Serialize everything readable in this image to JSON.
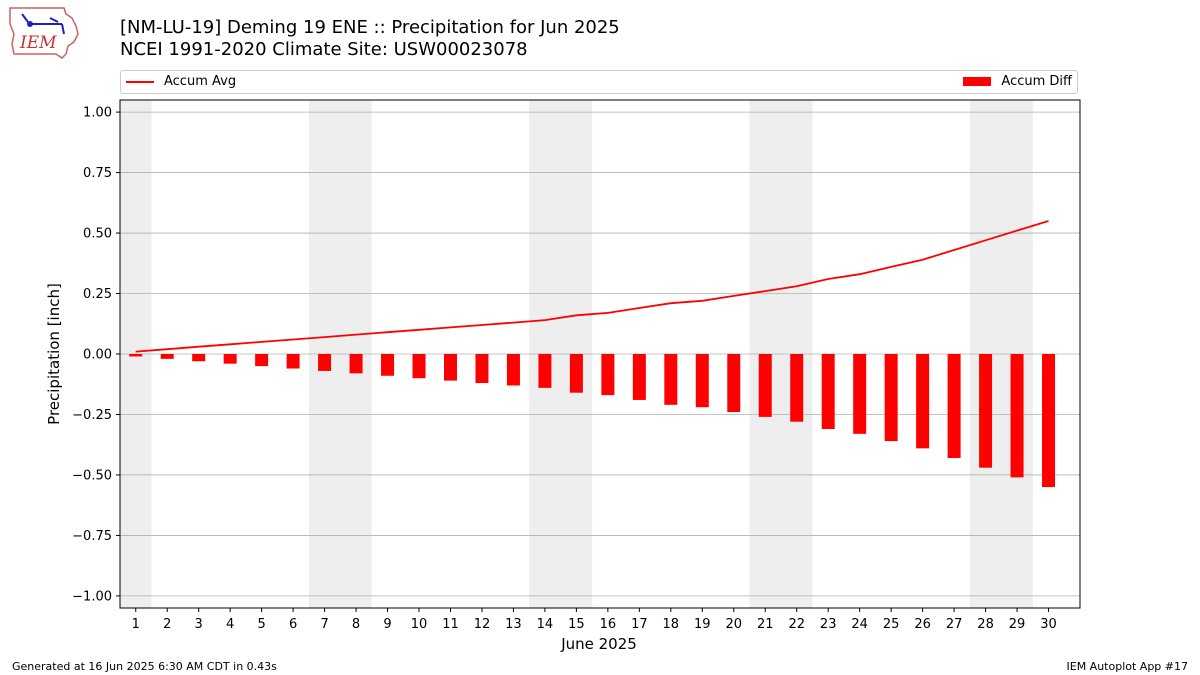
{
  "header": {
    "title_line1": "[NM-LU-19] Deming 19 ENE :: Precipitation for Jun 2025",
    "title_line2": "NCEI 1991-2020 Climate Site: USW00023078"
  },
  "logo": {
    "text": "IEM",
    "icon": "iowa-map-weather-station-logo"
  },
  "footer": {
    "generated": "Generated at 16 Jun 2025 6:30 AM CDT in 0.43s",
    "app": "IEM Autoplot App #17"
  },
  "colors": {
    "series": "#ff0000",
    "weekend_band": "#eeeeee",
    "grid": "#b0b0b0"
  },
  "chart_data": {
    "type": "bar",
    "xlabel": "June 2025",
    "ylabel": "Precipitation [inch]",
    "ylim": [
      -1.05,
      1.05
    ],
    "yticks": [
      -1.0,
      -0.75,
      -0.5,
      -0.25,
      0.0,
      0.25,
      0.5,
      0.75,
      1.0
    ],
    "ytick_labels": [
      "−1.00",
      "−0.75",
      "−0.50",
      "−0.25",
      "0.00",
      "0.25",
      "0.50",
      "0.75",
      "1.00"
    ],
    "categories": [
      "1",
      "2",
      "3",
      "4",
      "5",
      "6",
      "7",
      "8",
      "9",
      "10",
      "11",
      "12",
      "13",
      "14",
      "15",
      "16",
      "17",
      "18",
      "19",
      "20",
      "21",
      "22",
      "23",
      "24",
      "25",
      "26",
      "27",
      "28",
      "29",
      "30"
    ],
    "grid": "horizontal",
    "legend_position": "top",
    "weekend_bands": [
      [
        0.5,
        1.5
      ],
      [
        6.5,
        8.5
      ],
      [
        13.5,
        15.5
      ],
      [
        20.5,
        22.5
      ],
      [
        27.5,
        29.5
      ]
    ],
    "series": [
      {
        "name": "Accum Avg",
        "type": "line",
        "values": [
          0.01,
          0.02,
          0.03,
          0.04,
          0.05,
          0.06,
          0.07,
          0.08,
          0.09,
          0.1,
          0.11,
          0.12,
          0.13,
          0.14,
          0.16,
          0.17,
          0.19,
          0.21,
          0.22,
          0.24,
          0.26,
          0.28,
          0.31,
          0.33,
          0.36,
          0.39,
          0.43,
          0.47,
          0.51,
          0.55
        ]
      },
      {
        "name": "Accum Diff",
        "type": "bar",
        "values": [
          -0.01,
          -0.02,
          -0.03,
          -0.04,
          -0.05,
          -0.06,
          -0.07,
          -0.08,
          -0.09,
          -0.1,
          -0.11,
          -0.12,
          -0.13,
          -0.14,
          -0.16,
          -0.17,
          -0.19,
          -0.21,
          -0.22,
          -0.24,
          -0.26,
          -0.28,
          -0.31,
          -0.33,
          -0.36,
          -0.39,
          -0.43,
          -0.47,
          -0.51,
          -0.55
        ]
      }
    ]
  }
}
